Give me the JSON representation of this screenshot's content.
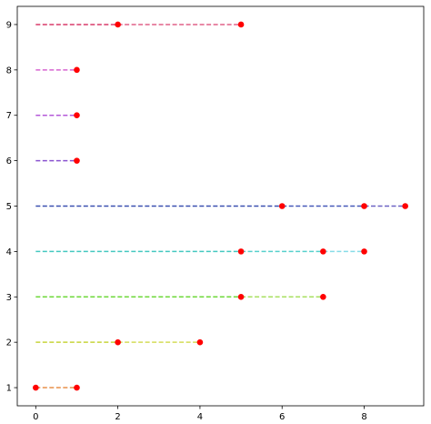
{
  "chart_data": {
    "type": "line",
    "title": "",
    "xlabel": "",
    "ylabel": "",
    "xlim": [
      -0.45,
      9.45
    ],
    "ylim": [
      0.6,
      9.4
    ],
    "xticks": [
      0,
      2,
      4,
      6,
      8
    ],
    "yticks": [
      1,
      2,
      3,
      4,
      5,
      6,
      7,
      8,
      9
    ],
    "grid": false,
    "legend": "none",
    "marker_color": "#ff0000",
    "series": [
      {
        "y": 1,
        "points": [
          0,
          1
        ],
        "color": "#e8904a",
        "segment_colors": [
          "#e8904a"
        ]
      },
      {
        "y": 2,
        "points": [
          0,
          2,
          4
        ],
        "color": "#c8d43a",
        "segment_colors": [
          "#c8d43a",
          "#d4dc58"
        ]
      },
      {
        "y": 3,
        "points": [
          0,
          5,
          7
        ],
        "color": "#6ed83a",
        "segment_colors": [
          "#6ed83a",
          "#a8e060"
        ]
      },
      {
        "y": 4,
        "points": [
          0,
          5,
          7,
          8
        ],
        "color": "#44c8c0",
        "segment_colors": [
          "#44c8c0",
          "#56d0cc",
          "#86dce8"
        ]
      },
      {
        "y": 5,
        "points": [
          0,
          6,
          8,
          9
        ],
        "color": "#3a50b0",
        "segment_colors": [
          "#3a50b0",
          "#4658b8",
          "#6c62c4"
        ]
      },
      {
        "y": 6,
        "points": [
          0,
          1
        ],
        "color": "#8a52d0",
        "segment_colors": [
          "#8a52d0"
        ]
      },
      {
        "y": 7,
        "points": [
          0,
          1
        ],
        "color": "#b458d8",
        "segment_colors": [
          "#b458d8"
        ]
      },
      {
        "y": 8,
        "points": [
          0,
          1
        ],
        "color": "#d866d0",
        "segment_colors": [
          "#d866d0"
        ]
      },
      {
        "y": 9,
        "points": [
          0,
          2,
          5
        ],
        "color": "#d83a6a",
        "segment_colors": [
          "#d83a6a",
          "#e06088"
        ]
      }
    ]
  }
}
